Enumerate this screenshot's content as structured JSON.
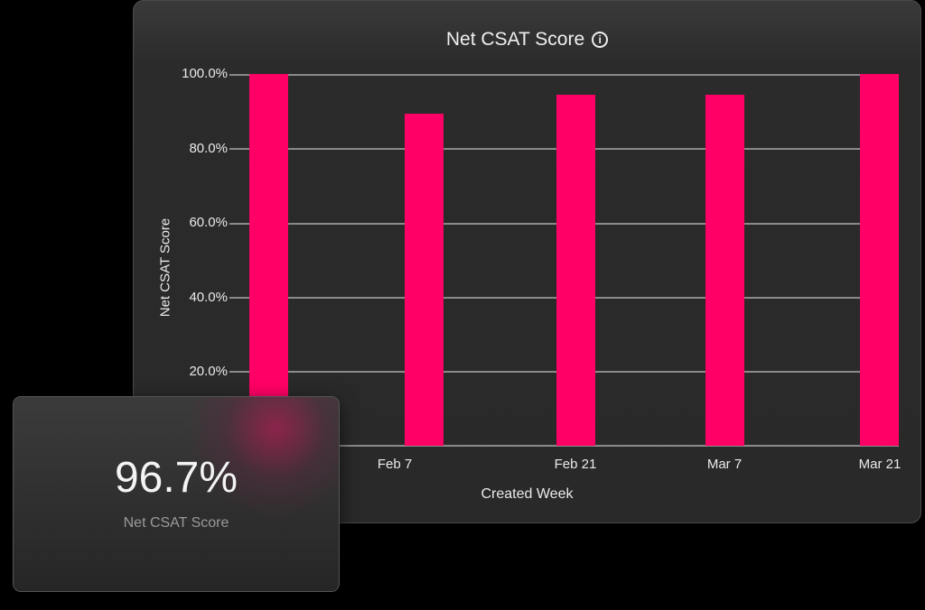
{
  "panel": {
    "title": "Net CSAT Score",
    "info_icon": "info-icon"
  },
  "card": {
    "value": "96.7%",
    "label": "Net CSAT Score",
    "glow_color": "#d2145a"
  },
  "colors": {
    "bar": "#ff0066",
    "background": "#292929",
    "gridline": "#8a8a8a"
  },
  "chart_data": {
    "type": "bar",
    "title": "Net CSAT Score",
    "xlabel": "Created Week",
    "ylabel": "Net CSAT Score",
    "categories": [
      "",
      "Feb 7",
      "Feb 21",
      "Mar 7",
      "Mar 21"
    ],
    "values": [
      100.0,
      89.2,
      94.3,
      94.3,
      100.0
    ],
    "y_ticks": [
      "100.0%",
      "80.0%",
      "60.0%",
      "40.0%",
      "20.0%"
    ],
    "ylim": [
      0,
      100
    ],
    "grid": true,
    "legend": "none"
  }
}
